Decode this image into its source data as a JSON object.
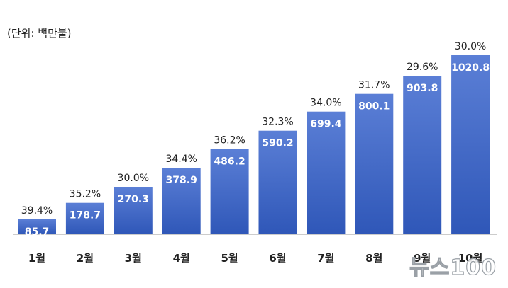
{
  "unit_label": "(단위: 백만불)",
  "watermark": "뉴스100",
  "colors": {
    "bar_top": "#5b7fd6",
    "bar_bottom": "#2f57b8",
    "axis": "#999999",
    "value_text": "#ffffff",
    "pct_text": "#222222",
    "category_text": "#222222"
  },
  "chart_data": {
    "type": "bar",
    "title": "",
    "xlabel": "",
    "ylabel": "",
    "categories": [
      "1월",
      "2월",
      "3월",
      "4월",
      "5월",
      "6월",
      "7월",
      "8월",
      "9월",
      "10월"
    ],
    "values": [
      85.7,
      178.7,
      270.3,
      378.9,
      486.2,
      590.2,
      699.4,
      800.1,
      903.8,
      1020.8
    ],
    "value_labels": [
      "85.7",
      "178.7",
      "270.3",
      "378.9",
      "486.2",
      "590.2",
      "699.4",
      "800.1",
      "903.8",
      "1020.8"
    ],
    "percent_labels": [
      "39.4%",
      "35.2%",
      "30.0%",
      "34.4%",
      "36.2%",
      "32.3%",
      "34.0%",
      "31.7%",
      "29.6%",
      "30.0%"
    ],
    "ylim": [
      0,
      1020.8
    ],
    "grid": false,
    "legend": "none"
  }
}
